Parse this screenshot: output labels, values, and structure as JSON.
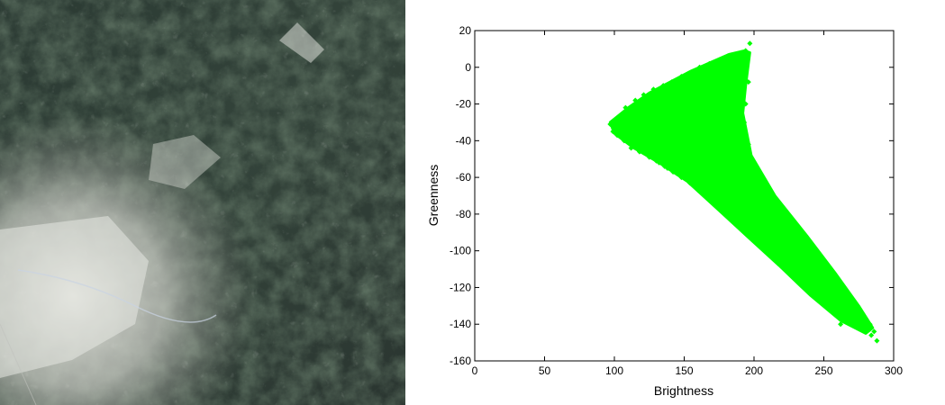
{
  "image_panel": {
    "icon": "satellite-terrain-image"
  },
  "chart_data": {
    "type": "scatter",
    "xlabel": "Brightness",
    "ylabel": "Greenness",
    "xlim": [
      0,
      300
    ],
    "ylim": [
      -160,
      20
    ],
    "x_ticks": [
      0,
      50,
      100,
      150,
      200,
      250,
      300
    ],
    "y_ticks": [
      20,
      0,
      -20,
      -40,
      -60,
      -80,
      -100,
      -120,
      -140,
      -160
    ],
    "grid": false,
    "marker": "diamond",
    "color": "#00ff00",
    "polygon_outline": [
      [
        97,
        -30
      ],
      [
        110,
        -22
      ],
      [
        125,
        -14
      ],
      [
        140,
        -8
      ],
      [
        155,
        -2
      ],
      [
        170,
        3
      ],
      [
        182,
        7
      ],
      [
        193,
        9
      ],
      [
        197,
        8
      ],
      [
        194,
        -10
      ],
      [
        192,
        -25
      ],
      [
        198,
        -48
      ],
      [
        215,
        -70
      ],
      [
        238,
        -92
      ],
      [
        258,
        -112
      ],
      [
        275,
        -130
      ],
      [
        285,
        -142
      ],
      [
        280,
        -145
      ],
      [
        262,
        -138
      ],
      [
        240,
        -124
      ],
      [
        218,
        -108
      ],
      [
        195,
        -92
      ],
      [
        175,
        -78
      ],
      [
        152,
        -62
      ],
      [
        132,
        -52
      ],
      [
        114,
        -44
      ],
      [
        100,
        -36
      ]
    ],
    "series_points": [
      [
        97,
        -31
      ],
      [
        99,
        -35
      ],
      [
        100,
        -29
      ],
      [
        102,
        -37
      ],
      [
        105,
        -26
      ],
      [
        107,
        -40
      ],
      [
        108,
        -22
      ],
      [
        112,
        -44
      ],
      [
        115,
        -18
      ],
      [
        118,
        -46
      ],
      [
        121,
        -15
      ],
      [
        125,
        -49
      ],
      [
        128,
        -12
      ],
      [
        132,
        -52
      ],
      [
        135,
        -10
      ],
      [
        138,
        -55
      ],
      [
        141,
        -8
      ],
      [
        145,
        -58
      ],
      [
        148,
        -5
      ],
      [
        152,
        -61
      ],
      [
        155,
        -3
      ],
      [
        158,
        -64
      ],
      [
        161,
        0
      ],
      [
        165,
        -67
      ],
      [
        168,
        2
      ],
      [
        172,
        -70
      ],
      [
        175,
        4
      ],
      [
        178,
        -73
      ],
      [
        181,
        6
      ],
      [
        185,
        -76
      ],
      [
        188,
        7
      ],
      [
        191,
        8
      ],
      [
        194,
        9
      ],
      [
        197,
        13
      ],
      [
        196,
        -8
      ],
      [
        194,
        -20
      ],
      [
        193,
        -30
      ],
      [
        196,
        -42
      ],
      [
        200,
        -52
      ],
      [
        205,
        -60
      ],
      [
        210,
        -66
      ],
      [
        216,
        -72
      ],
      [
        222,
        -80
      ],
      [
        228,
        -86
      ],
      [
        234,
        -92
      ],
      [
        240,
        -98
      ],
      [
        246,
        -104
      ],
      [
        252,
        -110
      ],
      [
        258,
        -116
      ],
      [
        264,
        -122
      ],
      [
        270,
        -128
      ],
      [
        275,
        -132
      ],
      [
        280,
        -137
      ],
      [
        283,
        -140
      ],
      [
        286,
        -144
      ],
      [
        288,
        -149
      ],
      [
        284,
        -146
      ],
      [
        278,
        -142
      ],
      [
        273,
        -139
      ],
      [
        268,
        -136
      ],
      [
        262,
        -140
      ],
      [
        256,
        -132
      ],
      [
        250,
        -126
      ],
      [
        244,
        -122
      ],
      [
        238,
        -118
      ],
      [
        232,
        -114
      ],
      [
        226,
        -110
      ],
      [
        220,
        -106
      ],
      [
        214,
        -102
      ],
      [
        208,
        -98
      ],
      [
        202,
        -94
      ],
      [
        196,
        -90
      ],
      [
        190,
        -86
      ],
      [
        184,
        -82
      ],
      [
        178,
        -79
      ],
      [
        172,
        -75
      ],
      [
        166,
        -71
      ],
      [
        160,
        -67
      ],
      [
        154,
        -63
      ],
      [
        148,
        -60
      ],
      [
        142,
        -57
      ],
      [
        136,
        -54
      ],
      [
        130,
        -51
      ],
      [
        124,
        -48
      ],
      [
        118,
        -45
      ],
      [
        112,
        -42
      ],
      [
        106,
        -39
      ],
      [
        101,
        -36
      ],
      [
        140,
        -30
      ],
      [
        150,
        -20
      ],
      [
        160,
        -40
      ],
      [
        170,
        -10
      ],
      [
        180,
        -30
      ],
      [
        190,
        -50
      ],
      [
        200,
        -70
      ],
      [
        210,
        -80
      ],
      [
        220,
        -95
      ],
      [
        230,
        -100
      ],
      [
        240,
        -110
      ],
      [
        250,
        -118
      ],
      [
        260,
        -128
      ],
      [
        270,
        -133
      ],
      [
        150,
        -45
      ],
      [
        165,
        -55
      ],
      [
        175,
        -20
      ],
      [
        185,
        -60
      ],
      [
        195,
        -75
      ],
      [
        205,
        -88
      ],
      [
        215,
        -92
      ],
      [
        225,
        -104
      ],
      [
        235,
        -112
      ],
      [
        245,
        -115
      ],
      [
        255,
        -124
      ]
    ]
  }
}
